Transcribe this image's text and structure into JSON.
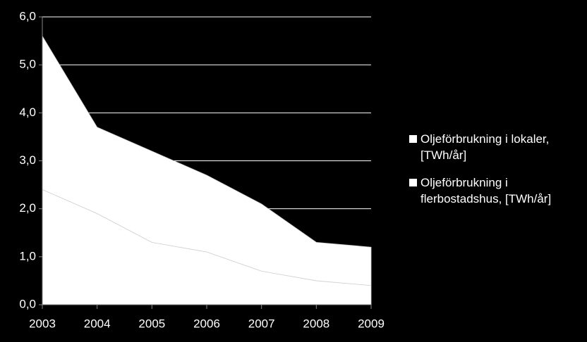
{
  "chart_data": {
    "type": "stacked_area",
    "categories": [
      "2003",
      "2004",
      "2005",
      "2006",
      "2007",
      "2008",
      "2009"
    ],
    "series": [
      {
        "name": "Oljeförbrukning i lokaler, [TWh/år]",
        "color": "#ffffff",
        "values": [
          3.2,
          1.8,
          1.9,
          1.6,
          1.4,
          0.8,
          0.8
        ]
      },
      {
        "name": "Oljeförbrukning i flerbostadshus, [TWh/år]",
        "color": "#ffffff",
        "values": [
          2.4,
          1.9,
          1.3,
          1.1,
          0.7,
          0.5,
          0.4
        ]
      }
    ],
    "ylim": [
      0,
      6
    ],
    "yticks": [
      {
        "value": 0,
        "label": "0,0"
      },
      {
        "value": 1,
        "label": "1,0"
      },
      {
        "value": 2,
        "label": "2,0"
      },
      {
        "value": 3,
        "label": "3,0"
      },
      {
        "value": 4,
        "label": "4,0"
      },
      {
        "value": 5,
        "label": "5,0"
      },
      {
        "value": 6,
        "label": "6,0"
      }
    ],
    "grid": true,
    "legend": "right"
  }
}
